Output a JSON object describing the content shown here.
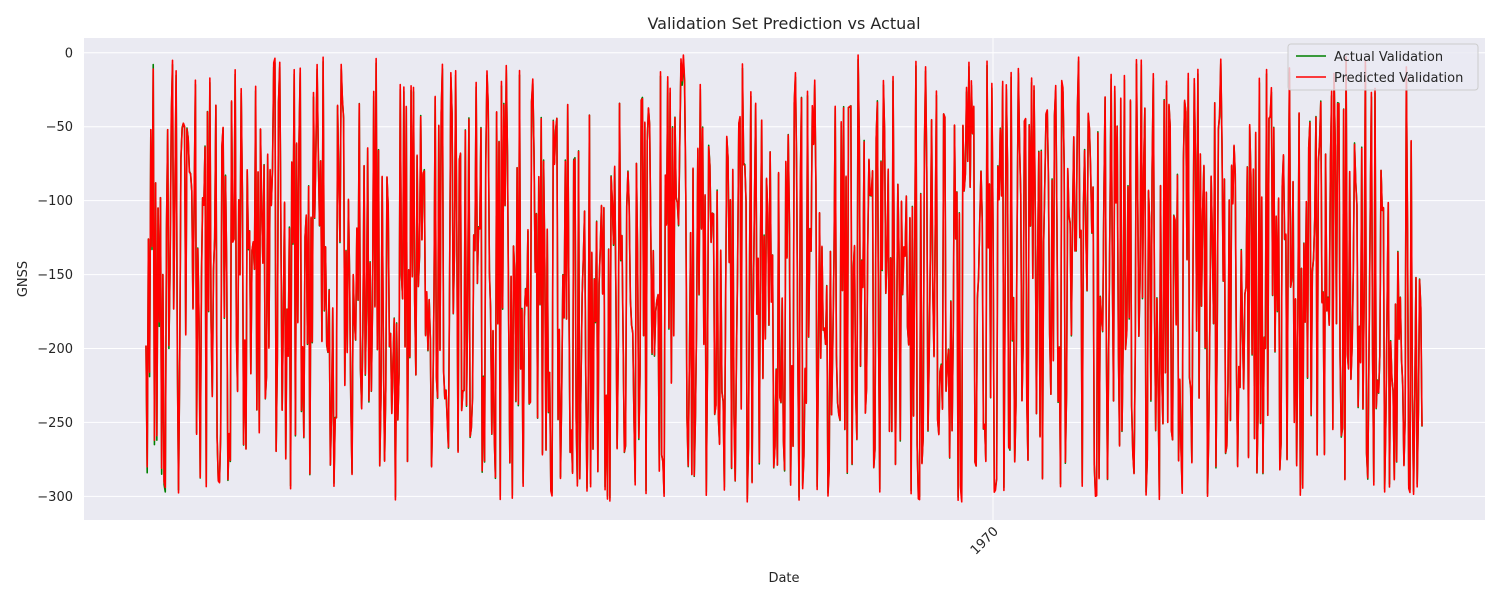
{
  "chart_data": {
    "type": "line",
    "title": "Validation Set Prediction vs Actual",
    "xlabel": "Date",
    "ylabel": "GNSS",
    "ylim": [
      -316,
      10
    ],
    "y_ticks": [
      0,
      -50,
      -100,
      -150,
      -200,
      -250,
      -300
    ],
    "x_ticks": [
      "1970"
    ],
    "grid": true,
    "legend_position": "top-right",
    "n_points": 1060,
    "value_range": [
      -302,
      -4
    ],
    "series": [
      {
        "name": "Actual Validation",
        "color": "#008000"
      },
      {
        "name": "Predicted Validation",
        "color": "#ff0000"
      }
    ],
    "sample_values": {
      "actual": [
        -198,
        -284,
        -126,
        -219,
        -52,
        -133,
        -8,
        -265,
        -88,
        -262,
        -105,
        -185,
        -98,
        -285,
        -150,
        -292,
        -297,
        -120,
        -52,
        -200
      ],
      "predicted": [
        -198,
        -280,
        -126,
        -216,
        -52,
        -131,
        -11,
        -262,
        -88,
        -259,
        -105,
        -182,
        -98,
        -281,
        -150,
        -290,
        -294,
        -120,
        -52,
        -198
      ]
    }
  }
}
